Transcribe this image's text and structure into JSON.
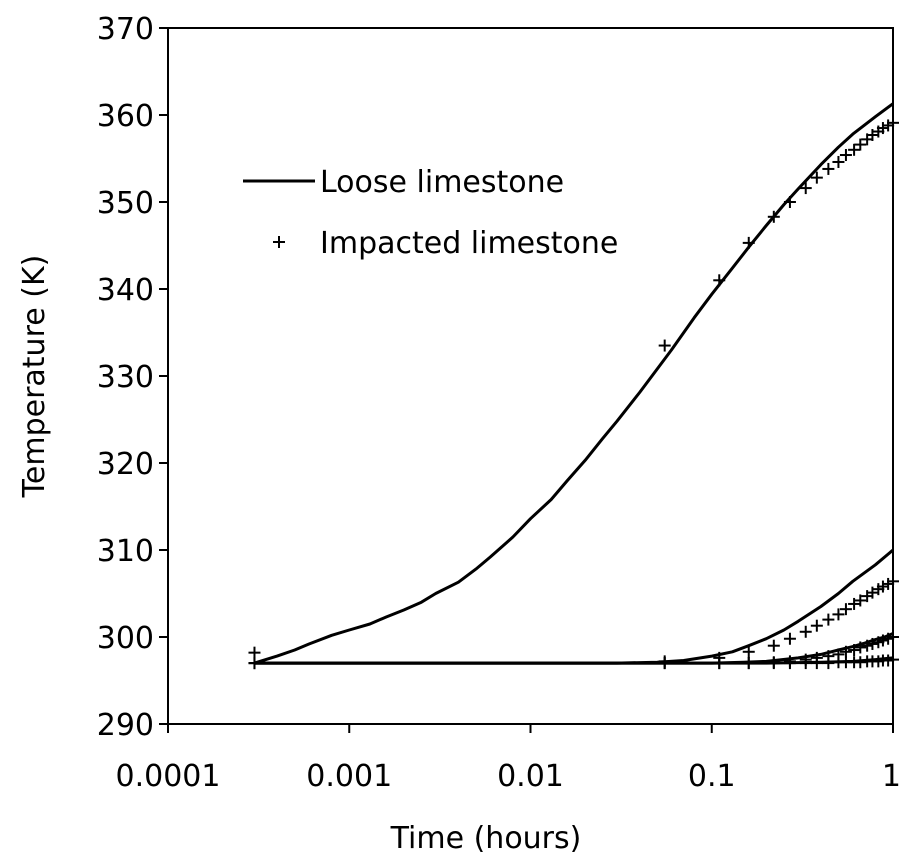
{
  "chart_data": {
    "type": "line",
    "xlabel": "Time (hours)",
    "ylabel": "Temperature (K)",
    "x_scale": "log",
    "xlim": [
      0.0001,
      1
    ],
    "ylim": [
      290,
      370
    ],
    "x_ticks": [
      0.0001,
      0.001,
      0.01,
      0.1,
      1
    ],
    "x_tick_labels": [
      "0.0001",
      "0.001",
      "0.01",
      "0.1",
      "1"
    ],
    "y_ticks": [
      290,
      300,
      310,
      320,
      330,
      340,
      350,
      360,
      370
    ],
    "y_tick_labels": [
      "290",
      "300",
      "310",
      "320",
      "330",
      "340",
      "350",
      "360",
      "370"
    ],
    "grid": false,
    "legend_position": "top-left",
    "legend": [
      {
        "label": "Loose limestone",
        "style": "line"
      },
      {
        "label": "Impacted limestone",
        "style": "plus-marker"
      }
    ],
    "series": [
      {
        "group": "Loose limestone",
        "style": "line",
        "x": [
          0.0003,
          0.0004,
          0.0005,
          0.0006,
          0.0008,
          0.001,
          0.0013,
          0.0016,
          0.002,
          0.0025,
          0.003,
          0.004,
          0.005,
          0.006,
          0.008,
          0.01,
          0.013,
          0.016,
          0.02,
          0.025,
          0.03,
          0.04,
          0.05,
          0.06,
          0.08,
          0.1,
          0.13,
          0.16,
          0.2,
          0.25,
          0.3,
          0.4,
          0.5,
          0.6,
          0.8,
          1.0
        ],
        "y": [
          297.0,
          297.8,
          298.5,
          299.2,
          300.2,
          300.8,
          301.5,
          302.3,
          303.1,
          304.0,
          305.0,
          306.3,
          307.8,
          309.2,
          311.5,
          313.6,
          315.8,
          318.0,
          320.3,
          322.8,
          324.8,
          328.1,
          330.8,
          333.0,
          336.7,
          339.4,
          342.4,
          344.8,
          347.3,
          349.7,
          351.5,
          354.3,
          356.3,
          357.8,
          359.8,
          361.3
        ]
      },
      {
        "group": "Loose limestone",
        "style": "line",
        "x": [
          0.0003,
          0.01,
          0.03,
          0.05,
          0.07,
          0.1,
          0.13,
          0.16,
          0.2,
          0.25,
          0.3,
          0.4,
          0.5,
          0.6,
          0.8,
          1.0
        ],
        "y": [
          297.0,
          297.0,
          297.0,
          297.1,
          297.3,
          297.8,
          298.3,
          299.0,
          299.8,
          300.8,
          301.8,
          303.5,
          305.0,
          306.4,
          308.3,
          310.0
        ]
      },
      {
        "group": "Loose limestone",
        "style": "line",
        "x": [
          0.0003,
          0.05,
          0.1,
          0.15,
          0.2,
          0.3,
          0.4,
          0.5,
          0.6,
          0.7,
          0.8,
          0.9,
          1.0
        ],
        "y": [
          297.0,
          297.0,
          297.0,
          297.1,
          297.2,
          297.6,
          298.0,
          298.5,
          298.9,
          299.3,
          299.7,
          300.0,
          300.4
        ]
      },
      {
        "group": "Loose limestone",
        "style": "line",
        "x": [
          0.0003,
          0.2,
          0.4,
          0.6,
          0.8,
          1.0
        ],
        "y": [
          297.0,
          297.0,
          297.1,
          297.2,
          297.4,
          297.6
        ]
      },
      {
        "group": "Impacted limestone",
        "style": "marker",
        "x": [
          0.0003,
          0.055,
          0.11,
          0.16,
          0.22,
          0.27,
          0.33,
          0.38,
          0.44,
          0.5,
          0.55,
          0.61,
          0.66,
          0.72,
          0.77,
          0.83,
          0.88,
          0.94,
          1.0
        ],
        "y": [
          298.2,
          333.5,
          341.0,
          345.3,
          348.3,
          350.0,
          351.6,
          352.8,
          353.8,
          354.6,
          355.4,
          356.0,
          356.6,
          357.2,
          357.7,
          358.1,
          358.5,
          358.8,
          359.1
        ]
      },
      {
        "group": "Impacted limestone",
        "style": "marker",
        "x": [
          0.0003,
          0.055,
          0.11,
          0.16,
          0.22,
          0.27,
          0.33,
          0.38,
          0.44,
          0.5,
          0.55,
          0.61,
          0.66,
          0.72,
          0.77,
          0.83,
          0.88,
          0.94,
          1.0
        ],
        "y": [
          297.0,
          297.2,
          297.6,
          298.3,
          299.0,
          299.8,
          300.6,
          301.3,
          302.0,
          302.6,
          303.2,
          303.8,
          304.2,
          304.7,
          305.1,
          305.5,
          305.8,
          306.1,
          306.4
        ]
      },
      {
        "group": "Impacted limestone",
        "style": "marker",
        "x": [
          0.0003,
          0.055,
          0.11,
          0.16,
          0.22,
          0.27,
          0.33,
          0.38,
          0.44,
          0.5,
          0.55,
          0.61,
          0.66,
          0.72,
          0.77,
          0.83,
          0.88,
          0.94,
          1.0
        ],
        "y": [
          297.0,
          297.0,
          297.0,
          297.0,
          297.1,
          297.2,
          297.4,
          297.6,
          297.8,
          298.0,
          298.3,
          298.5,
          298.8,
          299.0,
          299.2,
          299.4,
          299.6,
          299.8,
          300.0
        ]
      },
      {
        "group": "Impacted limestone",
        "style": "marker",
        "x": [
          0.0003,
          0.055,
          0.11,
          0.16,
          0.22,
          0.27,
          0.33,
          0.38,
          0.44,
          0.5,
          0.55,
          0.61,
          0.66,
          0.72,
          0.77,
          0.83,
          0.88,
          0.94,
          1.0
        ],
        "y": [
          297.0,
          297.0,
          297.0,
          297.0,
          297.0,
          297.0,
          297.0,
          297.0,
          297.0,
          297.1,
          297.1,
          297.1,
          297.1,
          297.2,
          297.2,
          297.2,
          297.3,
          297.3,
          297.4
        ]
      }
    ]
  }
}
